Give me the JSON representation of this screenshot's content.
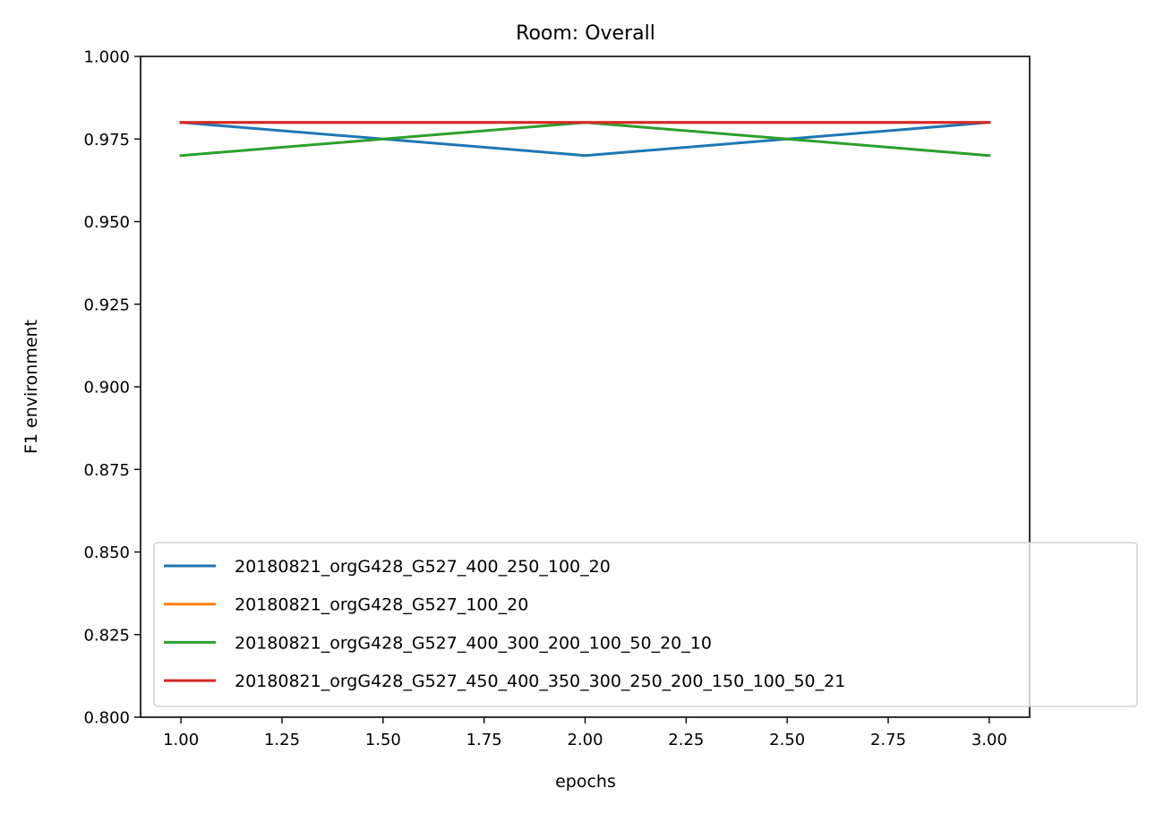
{
  "chart_data": {
    "type": "line",
    "title": "Room: Overall",
    "xlabel": "epochs",
    "ylabel": "F1 environment",
    "xlim": [
      0.9,
      3.1
    ],
    "ylim": [
      0.8,
      1.0
    ],
    "x_ticks": [
      1.0,
      1.25,
      1.5,
      1.75,
      2.0,
      2.25,
      2.5,
      2.75,
      3.0
    ],
    "x_tick_labels": [
      "1.00",
      "1.25",
      "1.50",
      "1.75",
      "2.00",
      "2.25",
      "2.50",
      "2.75",
      "3.00"
    ],
    "y_ticks": [
      0.8,
      0.825,
      0.85,
      0.875,
      0.9,
      0.925,
      0.95,
      0.975,
      1.0
    ],
    "y_tick_labels": [
      "0.800",
      "0.825",
      "0.850",
      "0.875",
      "0.900",
      "0.925",
      "0.950",
      "0.975",
      "1.000"
    ],
    "grid": false,
    "legend_position": "lower-right",
    "x": [
      1.0,
      2.0,
      3.0
    ],
    "series": [
      {
        "name": "20180821_orgG428_G527_400_250_100_20",
        "color": "#1f77b4",
        "values": [
          0.98,
          0.97,
          0.98
        ]
      },
      {
        "name": "20180821_orgG428_G527_100_20",
        "color": "#ff7f0e",
        "values": [
          0.98,
          0.98,
          0.98
        ]
      },
      {
        "name": "20180821_orgG428_G527_400_300_200_100_50_20_10",
        "color": "#2ca02c",
        "values": [
          0.97,
          0.98,
          0.97
        ]
      },
      {
        "name": "20180821_orgG428_G527_450_400_350_300_250_200_150_100_50_21",
        "color": "#d62728",
        "values": [
          0.98,
          0.98,
          0.98
        ]
      }
    ]
  }
}
